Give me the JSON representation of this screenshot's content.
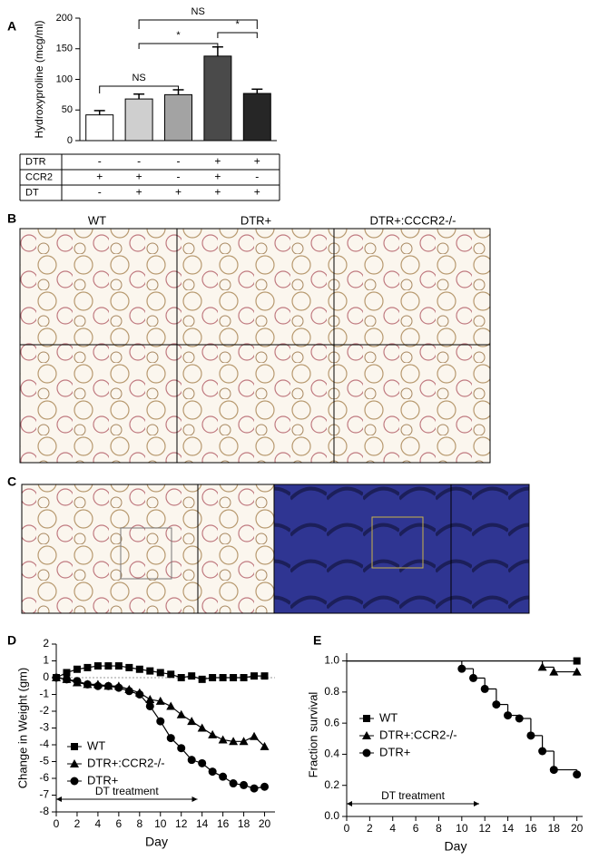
{
  "figure": {
    "panel_labels": [
      "A",
      "B",
      "C",
      "D",
      "E"
    ],
    "histology": {
      "columns": [
        "WT",
        "DTR+",
        "DTR+:CCCR2-/-"
      ]
    }
  },
  "chart_data": [
    {
      "type": "bar",
      "y_label": "Hydroxyproline (mcg/ml)",
      "categories": [
        null,
        null,
        null,
        null,
        null
      ],
      "values": [
        42,
        68,
        75,
        138,
        77
      ],
      "errors": [
        7,
        8,
        8,
        15,
        7
      ],
      "colors": [
        "#ffffff",
        "#cfcfcf",
        "#a3a3a3",
        "#4a4a4a",
        "#262626"
      ],
      "ylim": [
        0,
        200
      ],
      "yticks": [
        0,
        50,
        100,
        150,
        200
      ],
      "annotations": [
        "NS",
        "*",
        "*",
        "NS"
      ],
      "table": {
        "rows": [
          {
            "label": "DTR",
            "cells": [
              "-",
              "-",
              "-",
              "+",
              "+"
            ]
          },
          {
            "label": "CCR2",
            "cells": [
              "+",
              "+",
              "-",
              "+",
              "-"
            ]
          },
          {
            "label": "DT",
            "cells": [
              "-",
              "+",
              "+",
              "+",
              "+"
            ]
          }
        ]
      }
    },
    {
      "type": "line",
      "x_label": "Day",
      "y_label": "Change in Weight (gm)",
      "x": [
        0,
        1,
        2,
        3,
        4,
        5,
        6,
        7,
        8,
        9,
        10,
        11,
        12,
        13,
        14,
        15,
        16,
        17,
        18,
        19,
        20
      ],
      "series": [
        {
          "name": "WT",
          "color": "#000000",
          "marker": "square",
          "values": [
            0,
            0.3,
            0.5,
            0.6,
            0.7,
            0.7,
            0.7,
            0.6,
            0.5,
            0.4,
            0.3,
            0.2,
            0,
            0.1,
            -0.1,
            0,
            0,
            0,
            0,
            0.1,
            0.1
          ]
        },
        {
          "name": "DTR+:CCR2-/-",
          "color": "#000000",
          "marker": "triangle",
          "values": [
            0,
            -0.1,
            -0.3,
            -0.4,
            -0.4,
            -0.5,
            -0.5,
            -0.7,
            -0.9,
            -1.3,
            -1.4,
            -1.7,
            -2.2,
            -2.6,
            -3.0,
            -3.4,
            -3.7,
            -3.8,
            -3.8,
            -3.5,
            -4.1
          ]
        },
        {
          "name": "DTR+",
          "color": "#000000",
          "marker": "circle",
          "values": [
            0,
            -0.1,
            -0.2,
            -0.4,
            -0.5,
            -0.5,
            -0.6,
            -0.8,
            -1.0,
            -1.7,
            -2.6,
            -3.6,
            -4.2,
            -4.9,
            -5.1,
            -5.6,
            -5.9,
            -6.3,
            -6.4,
            -6.6,
            -6.5
          ]
        }
      ],
      "xlim": [
        0,
        21
      ],
      "xticks": [
        0,
        2,
        4,
        6,
        8,
        10,
        12,
        14,
        16,
        18,
        20
      ],
      "ylim": [
        -8,
        2
      ],
      "yticks": [
        -8,
        -7,
        -6,
        -5,
        -4,
        -3,
        -2,
        -1,
        0,
        1,
        2
      ],
      "zero_line": true,
      "legend": "lower left",
      "annotation": "DT treatment"
    },
    {
      "type": "step",
      "x_label": "Day",
      "y_label": "Fraction survival",
      "series": [
        {
          "name": "WT",
          "color": "#000000",
          "marker": "square",
          "x": [
            0,
            20
          ],
          "values": [
            1,
            1
          ]
        },
        {
          "name": "DTR+:CCR2-/-",
          "color": "#000000",
          "marker": "triangle",
          "x": [
            0,
            17,
            18,
            20
          ],
          "values": [
            1,
            0.96,
            0.93,
            0.93
          ]
        },
        {
          "name": "DTR+",
          "color": "#000000",
          "marker": "circle",
          "x": [
            0,
            10,
            11,
            12,
            13,
            14,
            15,
            16,
            17,
            18,
            20
          ],
          "values": [
            1,
            0.95,
            0.89,
            0.82,
            0.72,
            0.65,
            0.63,
            0.52,
            0.42,
            0.3,
            0.27
          ]
        }
      ],
      "xlim": [
        0,
        20.5
      ],
      "xticks": [
        0,
        2,
        4,
        6,
        8,
        10,
        12,
        14,
        16,
        18,
        20
      ],
      "ylim": [
        0,
        1.05
      ],
      "yticks": [
        {
          "value": 0,
          "label": "0.0"
        },
        0.2,
        0.4,
        0.6,
        0.8,
        {
          "value": 1,
          "label": "1.0"
        }
      ],
      "legend": "center left",
      "annotation": "DT treatment"
    }
  ]
}
